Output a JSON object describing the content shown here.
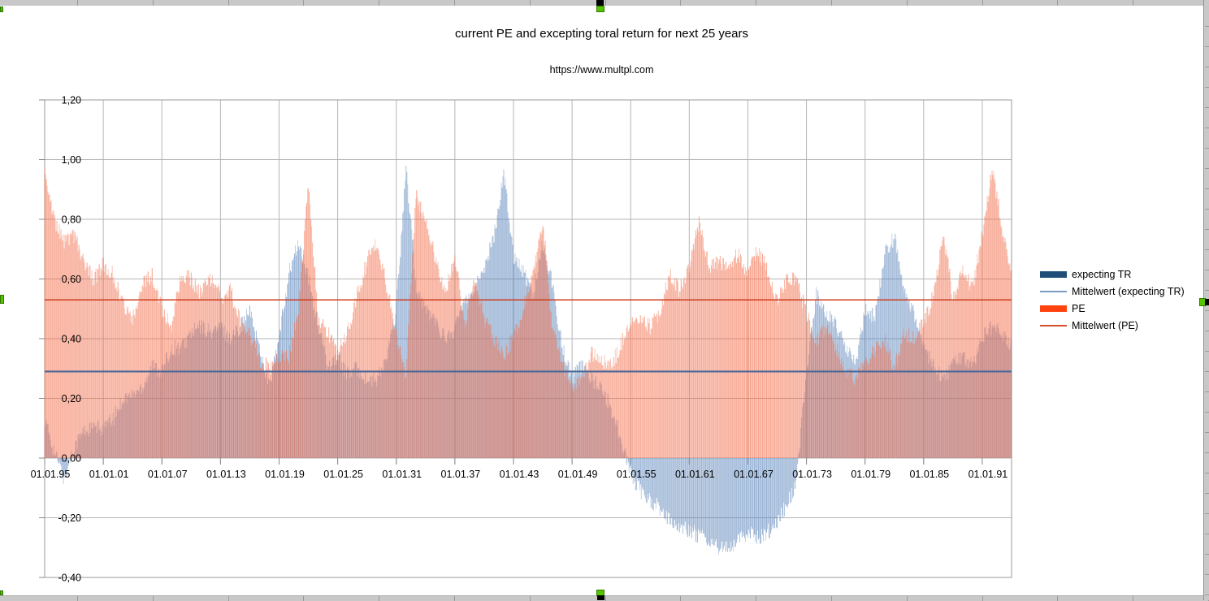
{
  "chart": {
    "title": "current PE and excepting toral return for next 25 years",
    "subtitle": "https://www.multpl.com",
    "legend": {
      "items": [
        {
          "label": "expecting TR",
          "swatch": "bar",
          "color": "#1f4e79"
        },
        {
          "label": "Mittelwert (expecting TR)",
          "swatch": "line",
          "color": "#7d9cc4"
        },
        {
          "label": "PE",
          "swatch": "bar",
          "color": "#ff420e"
        },
        {
          "label": "Mittelwert (PE)",
          "swatch": "line",
          "color": "#d3502e"
        }
      ]
    },
    "y_axis": {
      "labels": [
        "1,20",
        "1,00",
        "0,80",
        "0,60",
        "0,40",
        "0,20",
        "0,00",
        "-0,20",
        "-0,40"
      ],
      "min": -0.4,
      "max": 1.2,
      "step": 0.2
    },
    "x_axis": {
      "labels": [
        "01.01.95",
        "01.01.01",
        "01.01.07",
        "01.01.13",
        "01.01.19",
        "01.01.25",
        "01.01.31",
        "01.01.37",
        "01.01.43",
        "01.01.49",
        "01.01.55",
        "01.01.61",
        "01.01.67",
        "01.01.73",
        "01.01.79",
        "01.01.85",
        "01.01.91"
      ],
      "start_year": 1895,
      "label_step_years": 6
    }
  },
  "chart_data": {
    "type": "bar",
    "title": "current PE and excepting toral return for next 25 years",
    "subtitle": "https://www.multpl.com",
    "x_start": 1895,
    "x_end": 1994,
    "x_step": 1,
    "x_tick_format": "01.01.YY every 6 years",
    "ylim": [
      -0.4,
      1.2
    ],
    "grid": true,
    "legend_position": "right",
    "series": [
      {
        "name": "expecting TR",
        "bar_color": "#5882b9",
        "legend_color": "#1f4e79",
        "values": [
          0.13,
          0.02,
          -0.07,
          0.04,
          0.09,
          0.1,
          0.1,
          0.13,
          0.2,
          0.21,
          0.24,
          0.31,
          0.29,
          0.37,
          0.37,
          0.42,
          0.44,
          0.42,
          0.44,
          0.4,
          0.44,
          0.49,
          0.37,
          0.24,
          0.4,
          0.62,
          0.72,
          0.6,
          0.44,
          0.31,
          0.34,
          0.28,
          0.3,
          0.26,
          0.26,
          0.33,
          0.5,
          0.97,
          0.58,
          0.5,
          0.46,
          0.4,
          0.43,
          0.54,
          0.56,
          0.64,
          0.74,
          0.96,
          0.68,
          0.63,
          0.55,
          0.72,
          0.58,
          0.37,
          0.27,
          0.31,
          0.27,
          0.23,
          0.17,
          0.07,
          -0.05,
          -0.11,
          -0.14,
          -0.17,
          -0.21,
          -0.23,
          -0.24,
          -0.26,
          -0.28,
          -0.3,
          -0.3,
          -0.28,
          -0.25,
          -0.27,
          -0.25,
          -0.21,
          -0.16,
          -0.07,
          0.3,
          0.55,
          0.48,
          0.45,
          0.38,
          0.31,
          0.5,
          0.47,
          0.68,
          0.74,
          0.55,
          0.48,
          0.37,
          0.31,
          0.26,
          0.31,
          0.34,
          0.31,
          0.4,
          0.44,
          0.42,
          0.37
        ]
      },
      {
        "name": "PE",
        "bar_color": "#f26a46",
        "legend_color": "#ff420e",
        "values": [
          0.95,
          0.8,
          0.72,
          0.74,
          0.66,
          0.6,
          0.65,
          0.62,
          0.52,
          0.47,
          0.58,
          0.61,
          0.5,
          0.44,
          0.62,
          0.6,
          0.55,
          0.6,
          0.54,
          0.56,
          0.46,
          0.42,
          0.33,
          0.3,
          0.35,
          0.34,
          0.5,
          0.93,
          0.47,
          0.42,
          0.35,
          0.42,
          0.55,
          0.66,
          0.72,
          0.58,
          0.42,
          0.28,
          0.88,
          0.8,
          0.67,
          0.56,
          0.68,
          0.44,
          0.6,
          0.47,
          0.4,
          0.35,
          0.4,
          0.5,
          0.62,
          0.8,
          0.42,
          0.32,
          0.24,
          0.28,
          0.35,
          0.33,
          0.31,
          0.38,
          0.46,
          0.48,
          0.44,
          0.48,
          0.62,
          0.56,
          0.65,
          0.79,
          0.64,
          0.66,
          0.65,
          0.68,
          0.62,
          0.7,
          0.63,
          0.52,
          0.6,
          0.6,
          0.48,
          0.4,
          0.43,
          0.37,
          0.3,
          0.26,
          0.32,
          0.36,
          0.4,
          0.29,
          0.42,
          0.4,
          0.45,
          0.55,
          0.75,
          0.54,
          0.62,
          0.57,
          0.75,
          0.97,
          0.78,
          0.62
        ]
      }
    ],
    "mean_lines": [
      {
        "name": "Mittelwert (expecting TR)",
        "value": 0.29,
        "color": "#4a6899",
        "width": 2.2
      },
      {
        "name": "Mittelwert (PE)",
        "value": 0.53,
        "color": "#cc3c1e",
        "width": 1.5
      }
    ]
  }
}
